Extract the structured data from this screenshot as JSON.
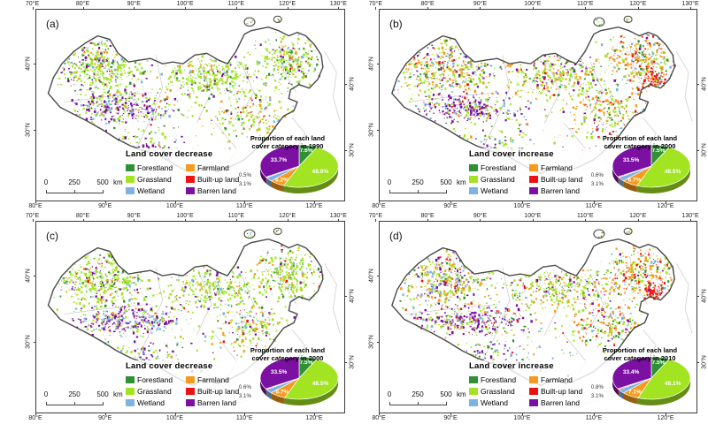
{
  "palette": {
    "forestland": "#2f9133",
    "grassland": "#a2e422",
    "farmland": "#f59a1c",
    "builtup": "#ee1111",
    "wetland": "#7cb2e4",
    "barren": "#7b10a2",
    "outline": "#4a4a4a",
    "neighbor_lines": "#c9c9c9"
  },
  "axes": {
    "top_labels": [
      "70°E",
      "80°E",
      "90°E",
      "100°E",
      "110°E",
      "120°E",
      "130°E"
    ],
    "bottom_labels": [
      "80°E",
      "90°E",
      "100°E",
      "110°E",
      "120°E"
    ],
    "lat_labels": [
      "40°N",
      "30°N"
    ]
  },
  "scalebar": {
    "ticks": [
      "0",
      "250",
      "500"
    ],
    "unit": "km"
  },
  "legend_items": [
    {
      "name": "Forestland",
      "key": "forestland"
    },
    {
      "name": "Farmland",
      "key": "farmland"
    },
    {
      "name": "Grassland",
      "key": "grassland"
    },
    {
      "name": "Built-up land",
      "key": "builtup"
    },
    {
      "name": "Wetland",
      "key": "wetland"
    },
    {
      "name": "Barren land",
      "key": "barren"
    }
  ],
  "panels": [
    {
      "label": "(a)",
      "variant": "decrease",
      "legend_title": "Land cover decrease",
      "pie": {
        "title_line1": "Proportion of each land",
        "title_line2": "cover category in 1990",
        "values": {
          "forestland": 7.6,
          "grassland": 48.9,
          "farmland": 6.2,
          "wetland": 3.1,
          "builtup": 0.5,
          "barren": 33.7
        }
      }
    },
    {
      "label": "(b)",
      "variant": "increase",
      "legend_title": "Land cover increase",
      "pie": {
        "title_line1": "Proportion of each land",
        "title_line2": "cover category in 2000",
        "values": {
          "forestland": 7.5,
          "grassland": 48.5,
          "farmland": 6.7,
          "wetland": 3.1,
          "builtup": 0.6,
          "barren": 33.5
        }
      }
    },
    {
      "label": "(c)",
      "variant": "decrease",
      "legend_title": "Land cover decrease",
      "pie": {
        "title_line1": "Proportion of each land",
        "title_line2": "cover category in 2000",
        "values": {
          "forestland": 7.5,
          "grassland": 48.5,
          "farmland": 6.7,
          "wetland": 3.1,
          "builtup": 0.6,
          "barren": 33.5
        }
      }
    },
    {
      "label": "(d)",
      "variant": "increase",
      "legend_title": "Land cover increase",
      "pie": {
        "title_line1": "Proportion of each land",
        "title_line2": "cover category in 2010",
        "values": {
          "forestland": 7.5,
          "grassland": 48.1,
          "farmland": 7.1,
          "wetland": 3.1,
          "builtup": 0.8,
          "barren": 33.4
        }
      }
    }
  ],
  "chart_data": [
    {
      "type": "pie",
      "title": "Proportion of each land cover category in 1990",
      "labels": [
        "Forestland",
        "Grassland",
        "Farmland",
        "Wetland",
        "Built-up land",
        "Barren land"
      ],
      "values": [
        7.6,
        48.9,
        6.2,
        3.1,
        0.5,
        33.7
      ]
    },
    {
      "type": "pie",
      "title": "Proportion of each land cover category in 2000",
      "labels": [
        "Forestland",
        "Grassland",
        "Farmland",
        "Wetland",
        "Built-up land",
        "Barren land"
      ],
      "values": [
        7.5,
        48.5,
        6.7,
        3.1,
        0.6,
        33.5
      ]
    },
    {
      "type": "pie",
      "title": "Proportion of each land cover category in 2000",
      "labels": [
        "Forestland",
        "Grassland",
        "Farmland",
        "Wetland",
        "Built-up land",
        "Barren land"
      ],
      "values": [
        7.5,
        48.5,
        6.7,
        3.1,
        0.6,
        33.5
      ]
    },
    {
      "type": "pie",
      "title": "Proportion of each land cover category in 2010",
      "labels": [
        "Forestland",
        "Grassland",
        "Farmland",
        "Wetland",
        "Built-up land",
        "Barren land"
      ],
      "values": [
        7.5,
        48.1,
        7.1,
        3.1,
        0.8,
        33.4
      ]
    }
  ]
}
